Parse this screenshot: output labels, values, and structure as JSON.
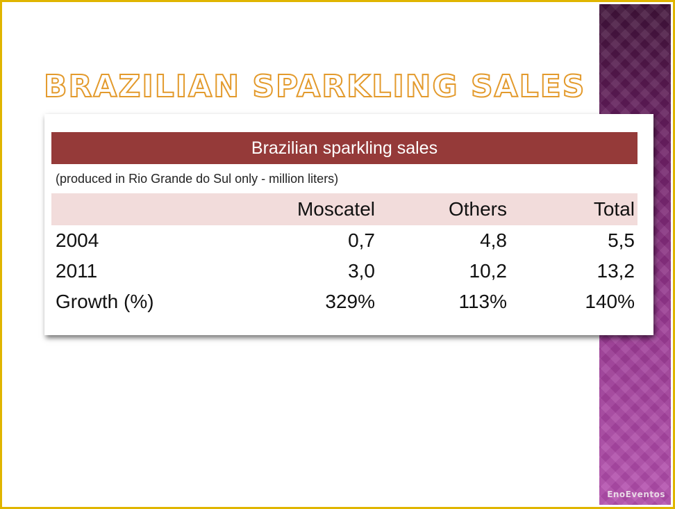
{
  "slide": {
    "title": "Brazilian Sparkling Sales",
    "watermark": "EnoEventos"
  },
  "table": {
    "caption": "Brazilian sparkling sales",
    "note": "(produced in Rio Grande do Sul only - million liters)",
    "columns": [
      "",
      "Moscatel",
      "Others",
      "Total"
    ],
    "rows": [
      {
        "label": "2004",
        "values": [
          "0,7",
          "4,8",
          "5,5"
        ]
      },
      {
        "label": "2011",
        "values": [
          "3,0",
          "10,2",
          "13,2"
        ]
      },
      {
        "label": "Growth (%)",
        "values": [
          "329%",
          "113%",
          "140%"
        ]
      }
    ]
  },
  "colors": {
    "frame_border": "#e0b500",
    "title_outline": "#e39a2c",
    "table_header_bg": "#953a39",
    "column_header_bg": "#f2dcdb",
    "side_band": "#7a2a72"
  }
}
